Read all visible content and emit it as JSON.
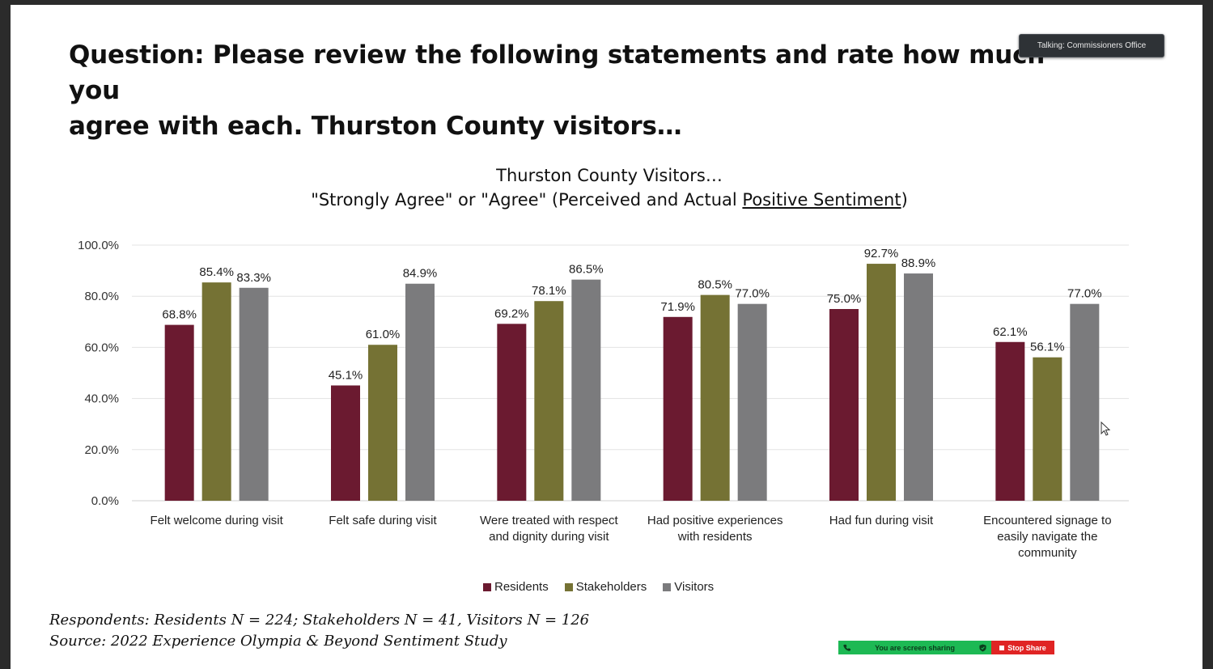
{
  "slide": {
    "question_line1": "Question: Please review the following statements and rate how much you",
    "question_line2": "agree with each. Thurston County visitors…",
    "footnote_respondents": "Respondents: Residents N = 224; Stakeholders N = 41, Visitors N = 126",
    "footnote_source": "Source: 2022 Experience Olympia & Beyond Sentiment Study"
  },
  "talking_indicator": "Talking: Commissioners Office",
  "screen_share": {
    "status": "You are screen sharing",
    "phone_icon": "phone-icon",
    "shield_icon": "shield-icon",
    "stop_label": "Stop Share"
  },
  "chart_data": {
    "type": "bar",
    "title_line1": "Thurston County Visitors…",
    "title_line2_prefix": "\"Strongly Agree\" or \"Agree\" (Perceived and Actual ",
    "title_line2_underlined": "Positive Sentiment",
    "title_line2_suffix": ")",
    "categories": [
      [
        "Felt welcome during visit"
      ],
      [
        "Felt safe during visit"
      ],
      [
        "Were treated with respect",
        "and dignity during visit"
      ],
      [
        "Had positive experiences",
        "with residents"
      ],
      [
        "Had fun during visit"
      ],
      [
        "Encountered signage to",
        "easily navigate the",
        "community"
      ]
    ],
    "series": [
      {
        "name": "Residents",
        "color": "#6b1a30",
        "values": [
          68.8,
          45.1,
          69.2,
          71.9,
          75.0,
          62.1
        ]
      },
      {
        "name": "Stakeholders",
        "color": "#757234",
        "values": [
          85.4,
          61.0,
          78.1,
          80.5,
          92.7,
          56.1
        ]
      },
      {
        "name": "Visitors",
        "color": "#7b7b7d",
        "values": [
          83.3,
          84.9,
          86.5,
          77.0,
          88.9,
          77.0
        ]
      }
    ],
    "y_ticks": [
      "0.0%",
      "20.0%",
      "40.0%",
      "60.0%",
      "80.0%",
      "100.0%"
    ],
    "ylim": [
      0,
      100
    ],
    "grid": true,
    "legend_position": "bottom"
  }
}
